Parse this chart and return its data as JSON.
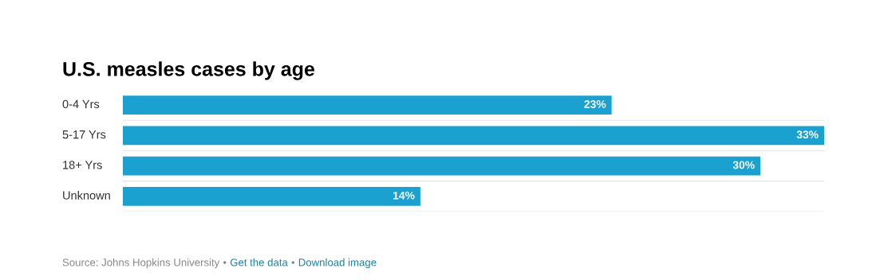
{
  "chart_data": {
    "type": "bar",
    "orientation": "horizontal",
    "title": "U.S. measles cases by age",
    "categories": [
      "0-4 Yrs",
      "5-17 Yrs",
      "18+ Yrs",
      "Unknown"
    ],
    "values": [
      23,
      33,
      30,
      14
    ],
    "value_labels": [
      "23%",
      "33%",
      "30%",
      "14%"
    ],
    "color": "#1ba1cf",
    "grid": "y",
    "annotations": [
      "Source: Johns Hopkins University",
      "•",
      "Get the data",
      "•",
      "Download image"
    ]
  }
}
